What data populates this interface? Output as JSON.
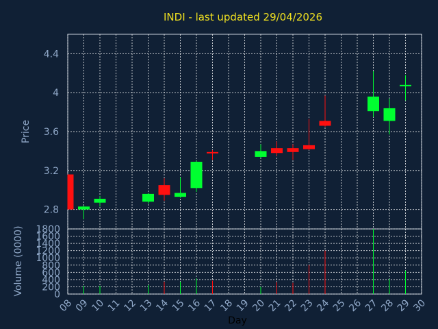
{
  "chart_data": {
    "type": "candlestick",
    "title": "INDI - last updated 29/04/2026",
    "xlabel": "Day",
    "price_ylabel": "Price",
    "volume_ylabel": "Volume (0000)",
    "x_ticks": [
      "08",
      "09",
      "10",
      "11",
      "12",
      "13",
      "14",
      "15",
      "16",
      "17",
      "18",
      "19",
      "20",
      "21",
      "22",
      "23",
      "24",
      "25",
      "26",
      "27",
      "28",
      "29",
      "30"
    ],
    "price_ticks": [
      "2.8",
      "3.2",
      "3.6",
      "4",
      "4.4"
    ],
    "price_tick_values": [
      2.8,
      3.2,
      3.6,
      4.0,
      4.4
    ],
    "price_ylim": [
      2.6,
      4.6
    ],
    "volume_ticks": [
      "0",
      "200",
      "400",
      "600",
      "800",
      "1000",
      "1200",
      "1400",
      "1600",
      "1800"
    ],
    "volume_tick_values": [
      0,
      200,
      400,
      600,
      800,
      1000,
      1200,
      1400,
      1600,
      1800
    ],
    "volume_ylim": [
      0,
      1800
    ],
    "grid": true,
    "colors": {
      "up": "#00ff30",
      "down": "#ff1010",
      "title": "#f0e020",
      "axis_text": "#90a8c8",
      "background": "#102035"
    },
    "candles": [
      {
        "day": 8,
        "open": 3.16,
        "close": 2.8,
        "high": 3.16,
        "low": 2.8,
        "volume": 0
      },
      {
        "day": 9,
        "open": 2.8,
        "close": 2.83,
        "high": 2.84,
        "low": 2.7,
        "volume": 230
      },
      {
        "day": 10,
        "open": 2.87,
        "close": 2.91,
        "high": 2.94,
        "low": 2.83,
        "volume": 230
      },
      {
        "day": 13,
        "open": 2.88,
        "close": 2.96,
        "high": 2.97,
        "low": 2.86,
        "volume": 250
      },
      {
        "day": 14,
        "open": 3.05,
        "close": 2.95,
        "high": 3.12,
        "low": 2.89,
        "volume": 340
      },
      {
        "day": 15,
        "open": 2.93,
        "close": 2.97,
        "high": 3.13,
        "low": 2.92,
        "volume": 340
      },
      {
        "day": 16,
        "open": 3.02,
        "close": 3.29,
        "high": 3.3,
        "low": 2.98,
        "volume": 430
      },
      {
        "day": 17,
        "open": 3.39,
        "close": 3.38,
        "high": 3.41,
        "low": 3.31,
        "volume": 370
      },
      {
        "day": 20,
        "open": 3.34,
        "close": 3.4,
        "high": 3.47,
        "low": 3.33,
        "volume": 200
      },
      {
        "day": 21,
        "open": 3.43,
        "close": 3.38,
        "high": 3.5,
        "low": 3.35,
        "volume": 330
      },
      {
        "day": 22,
        "open": 3.43,
        "close": 3.39,
        "high": 3.47,
        "low": 3.31,
        "volume": 310
      },
      {
        "day": 23,
        "open": 3.46,
        "close": 3.42,
        "high": 3.73,
        "low": 3.41,
        "volume": 800
      },
      {
        "day": 24,
        "open": 3.71,
        "close": 3.66,
        "high": 3.97,
        "low": 3.65,
        "volume": 1200
      },
      {
        "day": 27,
        "open": 3.81,
        "close": 3.96,
        "high": 4.22,
        "low": 3.75,
        "volume": 1800
      },
      {
        "day": 28,
        "open": 3.71,
        "close": 3.84,
        "high": 3.94,
        "low": 3.57,
        "volume": 420
      },
      {
        "day": 29,
        "open": 4.07,
        "close": 4.08,
        "high": 4.18,
        "low": 3.92,
        "volume": 650
      }
    ]
  }
}
